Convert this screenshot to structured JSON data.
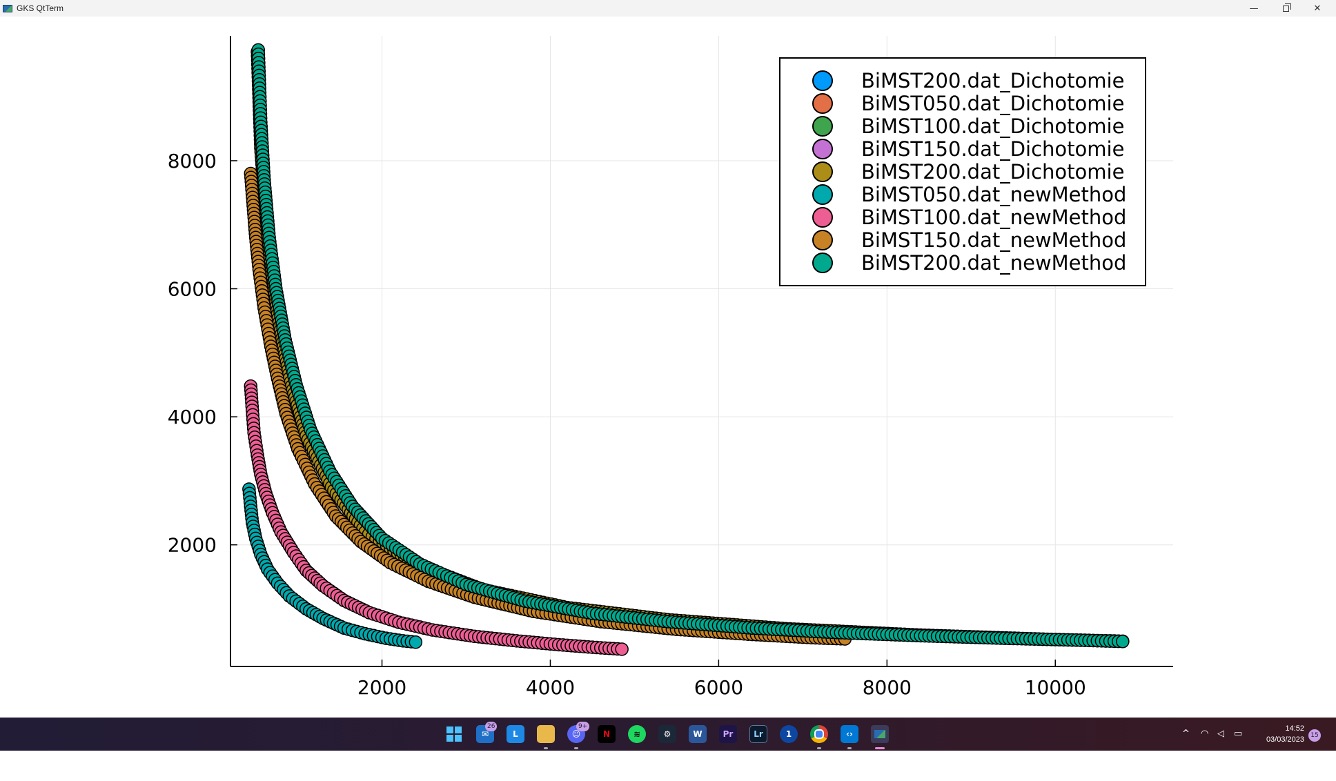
{
  "window": {
    "title": "GKS QtTerm",
    "controls": {
      "minimize": "—",
      "close": "✕"
    }
  },
  "chart_data": {
    "type": "scatter",
    "title": "",
    "xlabel": "",
    "ylabel": "",
    "xlim": [
      200,
      11400
    ],
    "ylim": [
      100,
      9950
    ],
    "xticks": [
      2000,
      4000,
      6000,
      8000,
      10000
    ],
    "yticks": [
      2000,
      4000,
      6000,
      8000
    ],
    "grid": true,
    "legend_position": "top-right",
    "marker": "circle",
    "series": [
      {
        "name": "BiMST200.dat_Dichotomie",
        "color": "#009AFA",
        "points": []
      },
      {
        "name": "BiMST050.dat_Dichotomie",
        "color": "#E36F47",
        "points": []
      },
      {
        "name": "BiMST100.dat_Dichotomie",
        "color": "#3EA44E",
        "points": []
      },
      {
        "name": "BiMST150.dat_Dichotomie",
        "color": "#C371D2",
        "points": []
      },
      {
        "name": "BiMST200.dat_Dichotomie",
        "color": "#AC8D18",
        "points": [
          [
            520,
            9700
          ],
          [
            560,
            8200
          ],
          [
            640,
            6800
          ],
          [
            760,
            5600
          ],
          [
            900,
            4600
          ],
          [
            1100,
            3700
          ],
          [
            1400,
            2900
          ],
          [
            1800,
            2200
          ],
          [
            2400,
            1700
          ],
          [
            3200,
            1300
          ],
          [
            4200,
            1020
          ],
          [
            5400,
            830
          ],
          [
            6800,
            690
          ],
          [
            8400,
            590
          ],
          [
            10000,
            520
          ],
          [
            10800,
            495
          ]
        ]
      },
      {
        "name": "BiMST050.dat_newMethod",
        "color": "#00A9AD",
        "points": [
          [
            420,
            2870
          ],
          [
            440,
            2600
          ],
          [
            460,
            2350
          ],
          [
            500,
            2100
          ],
          [
            560,
            1850
          ],
          [
            640,
            1620
          ],
          [
            760,
            1400
          ],
          [
            900,
            1200
          ],
          [
            1100,
            1000
          ],
          [
            1300,
            850
          ],
          [
            1550,
            700
          ],
          [
            1800,
            610
          ],
          [
            2050,
            540
          ],
          [
            2250,
            500
          ],
          [
            2400,
            480
          ]
        ]
      },
      {
        "name": "BiMST100.dat_newMethod",
        "color": "#ED5E93",
        "points": [
          [
            440,
            4480
          ],
          [
            460,
            4100
          ],
          [
            480,
            3750
          ],
          [
            520,
            3400
          ],
          [
            560,
            3100
          ],
          [
            620,
            2800
          ],
          [
            700,
            2500
          ],
          [
            800,
            2200
          ],
          [
            950,
            1880
          ],
          [
            1100,
            1600
          ],
          [
            1300,
            1360
          ],
          [
            1550,
            1130
          ],
          [
            1850,
            940
          ],
          [
            2200,
            790
          ],
          [
            2600,
            670
          ],
          [
            3100,
            570
          ],
          [
            3600,
            500
          ],
          [
            4100,
            440
          ],
          [
            4500,
            400
          ],
          [
            4850,
            370
          ]
        ]
      },
      {
        "name": "BiMST150.dat_newMethod",
        "color": "#C68225",
        "points": [
          [
            440,
            7800
          ],
          [
            470,
            7300
          ],
          [
            500,
            6800
          ],
          [
            540,
            6300
          ],
          [
            600,
            5700
          ],
          [
            680,
            5100
          ],
          [
            760,
            4600
          ],
          [
            860,
            4050
          ],
          [
            1000,
            3500
          ],
          [
            1200,
            2950
          ],
          [
            1450,
            2450
          ],
          [
            1750,
            2050
          ],
          [
            2100,
            1720
          ],
          [
            2550,
            1430
          ],
          [
            3100,
            1180
          ],
          [
            3800,
            960
          ],
          [
            4600,
            800
          ],
          [
            5500,
            680
          ],
          [
            6400,
            600
          ],
          [
            7100,
            550
          ],
          [
            7500,
            530
          ]
        ]
      },
      {
        "name": "BiMST200.dat_newMethod",
        "color": "#00A98D",
        "points": [
          [
            530,
            9730
          ],
          [
            560,
            8600
          ],
          [
            600,
            7700
          ],
          [
            660,
            6800
          ],
          [
            740,
            6000
          ],
          [
            850,
            5200
          ],
          [
            980,
            4500
          ],
          [
            1150,
            3800
          ],
          [
            1380,
            3150
          ],
          [
            1650,
            2600
          ],
          [
            2000,
            2100
          ],
          [
            2450,
            1700
          ],
          [
            3000,
            1380
          ],
          [
            3700,
            1120
          ],
          [
            4500,
            930
          ],
          [
            5400,
            800
          ],
          [
            6400,
            700
          ],
          [
            7400,
            630
          ],
          [
            8400,
            580
          ],
          [
            9400,
            540
          ],
          [
            10300,
            510
          ],
          [
            10800,
            490
          ]
        ]
      }
    ]
  },
  "taskbar": {
    "mail_badge": "26",
    "discord_badge": "9+",
    "time": "14:52",
    "date": "03/03/2023",
    "notification_count": "15",
    "tray": {
      "chevron": "^",
      "wifi": "◠",
      "volume": "◁",
      "battery": "▭"
    }
  }
}
